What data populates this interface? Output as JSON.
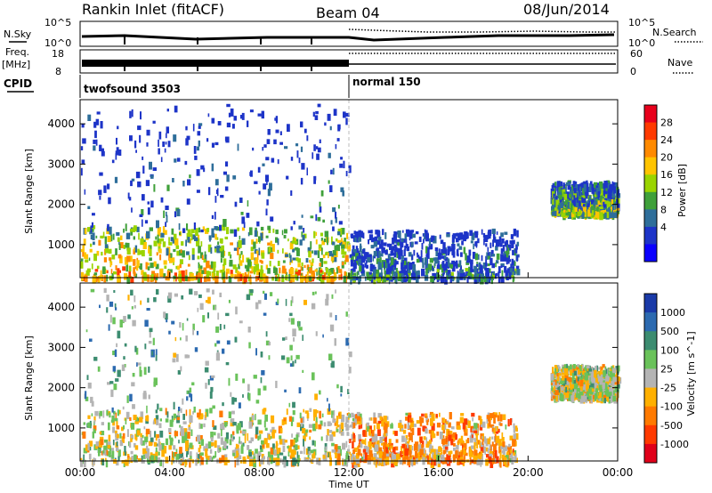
{
  "header": {
    "station": "Rankin Inlet (fitACF)",
    "beam": "Beam 04",
    "date": "08/Jun/2014"
  },
  "top_panels": {
    "nsky_label": "N.Sky",
    "nsky_ticks": [
      "10^5",
      "10^0"
    ],
    "nsearch_label": "N.Search",
    "nsearch_ticks": [
      "10^5",
      "10^0"
    ],
    "freq_label": "Freq.",
    "freq_unit": "[MHz]",
    "freq_ticks": [
      "18",
      "8"
    ],
    "nave_label": "Nave",
    "nave_ticks": [
      "60",
      "0"
    ],
    "cpid_label": "CPID",
    "cpid_modes": [
      "twofsound 3503",
      "normal 150"
    ]
  },
  "power_colorbar": {
    "label": "Power [dB]",
    "ticks": [
      "28",
      "24",
      "20",
      "16",
      "12",
      "8",
      "4"
    ],
    "colors": [
      "#e8001c",
      "#ff3a00",
      "#ff8a00",
      "#ffc400",
      "#9ad400",
      "#3fa03a",
      "#2e6e9a",
      "#1d34c8",
      "#0a00ff"
    ]
  },
  "velocity_colorbar": {
    "label": "Velocity [m s^-1]",
    "ticks": [
      "1000",
      "500",
      "100",
      "25",
      "-25",
      "-100",
      "-500",
      "-1000"
    ],
    "colors": [
      "#1a3aa8",
      "#2c6ab0",
      "#3c8c70",
      "#6ac25a",
      "#b4b4b4",
      "#ffb000",
      "#ff7a00",
      "#ff3a00",
      "#e0001a"
    ]
  },
  "chart_data": [
    {
      "type": "heatmap",
      "title": "Power",
      "ylabel": "Slant Range [km]",
      "xlabel": "",
      "x_ticks": [
        "00:00",
        "04:00",
        "08:00",
        "12:00",
        "16:00",
        "20:00",
        "00:00"
      ],
      "y_ticks": [
        "1000",
        "2000",
        "3000",
        "4000"
      ],
      "xlim": [
        0,
        24
      ],
      "ylim": [
        180,
        4600
      ],
      "regions": [
        {
          "x0": 0.0,
          "x1": 12.0,
          "y0": 200,
          "y1": 1500,
          "value": 20
        },
        {
          "x0": 0.0,
          "x1": 12.0,
          "y0": 1500,
          "y1": 4500,
          "value": 6
        },
        {
          "x0": 12.0,
          "x1": 19.5,
          "y0": 200,
          "y1": 1400,
          "value": 8
        },
        {
          "x0": 21.0,
          "x1": 24.0,
          "y0": 1800,
          "y1": 2600,
          "value": 14
        }
      ]
    },
    {
      "type": "heatmap",
      "title": "Velocity",
      "ylabel": "Slant Range [km]",
      "xlabel": "Time UT",
      "x_ticks": [
        "00:00",
        "04:00",
        "08:00",
        "12:00",
        "16:00",
        "20:00",
        "00:00"
      ],
      "y_ticks": [
        "1000",
        "2000",
        "3000",
        "4000"
      ],
      "xlim": [
        0,
        24
      ],
      "ylim": [
        180,
        4600
      ],
      "regions": [
        {
          "x0": 0.0,
          "x1": 12.0,
          "y0": 200,
          "y1": 1500,
          "value": 0
        },
        {
          "x0": 0.0,
          "x1": 12.0,
          "y0": 1500,
          "y1": 4500,
          "value": 300
        },
        {
          "x0": 12.0,
          "x1": 19.5,
          "y0": 200,
          "y1": 1400,
          "value": -300
        },
        {
          "x0": 21.0,
          "x1": 24.0,
          "y0": 1800,
          "y1": 2600,
          "value": 0
        }
      ]
    }
  ]
}
